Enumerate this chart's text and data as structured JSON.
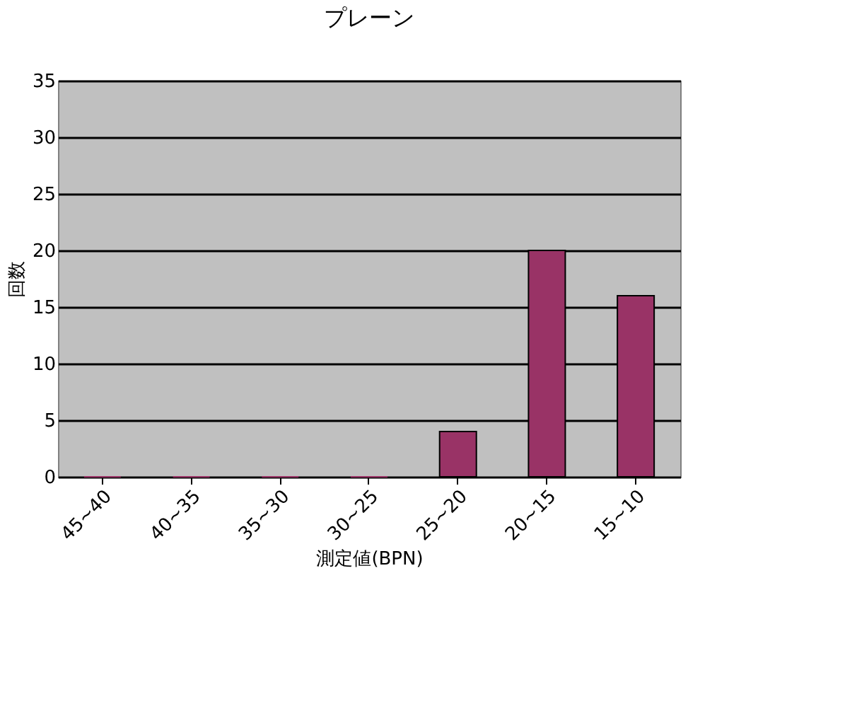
{
  "chart_data": {
    "type": "bar",
    "title": "プレーン",
    "xlabel": "測定値(BPN)",
    "ylabel": "回数",
    "categories": [
      "45~40",
      "40~35",
      "35~30",
      "30~25",
      "25~20",
      "20~15",
      "15~10"
    ],
    "values": [
      0,
      0,
      0,
      0,
      4,
      20,
      16
    ],
    "color": "#993366",
    "ylim": [
      0,
      35
    ],
    "yticks": [
      0,
      5,
      10,
      15,
      20,
      25,
      30,
      35
    ],
    "grid": "y"
  }
}
